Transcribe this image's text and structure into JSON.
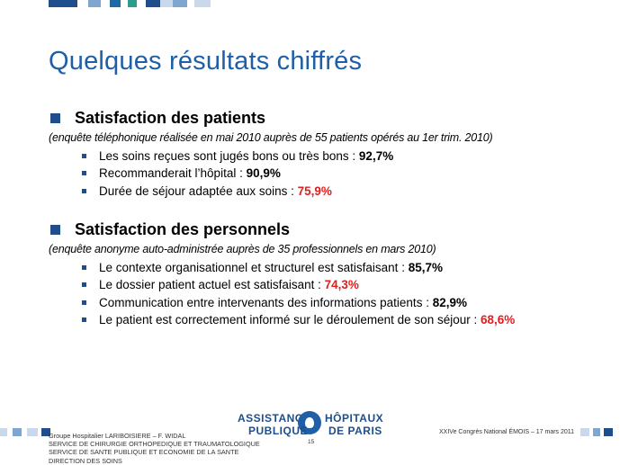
{
  "slide": {
    "title": "Quelques résultats chiffrés",
    "page_number": "15"
  },
  "colors": {
    "title": "#1f5fa8",
    "bullet": "#1f4e8c",
    "highlight": "#e02020"
  },
  "sections": [
    {
      "title": "Satisfaction des patients",
      "note": "(enquête téléphonique réalisée en mai 2010 auprès de 55 patients opérés au 1er trim. 2010)",
      "items": [
        {
          "text": "Les soins reçues sont jugés bons ou très bons : ",
          "value": "92,7%",
          "highlight": false
        },
        {
          "text": "Recommanderait l’hôpital : ",
          "value": "90,9%",
          "highlight": false
        },
        {
          "text": "Durée de séjour adaptée aux soins : ",
          "value": "75,9%",
          "highlight": true
        }
      ]
    },
    {
      "title": "Satisfaction des personnels",
      "note": "(enquête anonyme auto-administrée auprès de 35 professionnels en mars 2010)",
      "items": [
        {
          "text": "Le contexte organisationnel et structurel est satisfaisant : ",
          "value": "85,7%",
          "highlight": false
        },
        {
          "text": "Le dossier patient actuel est satisfaisant : ",
          "value": "74,3%",
          "highlight": true
        },
        {
          "text": "Communication entre intervenants des informations patients : ",
          "value": "82,9%",
          "highlight": false
        },
        {
          "text": "Le patient est correctement informé sur le déroulement de son séjour : ",
          "value": "68,6%",
          "highlight": true
        }
      ]
    }
  ],
  "footer": {
    "left_lines": [
      "Groupe Hospitalier LARIBOISIERE – F. WIDAL",
      "SERVICE DE CHIRURGIE ORTHOPEDIQUE ET TRAUMATOLOGIQUE",
      "SERVICE DE SANTE PUBLIQUE ET ECONOMIE DE LA SANTE",
      "DIRECTION DES SOINS"
    ],
    "right": "XXIVe Congrès National ÉMOIS – 17 mars 2011",
    "logo_line1_left": "ASSISTANCE",
    "logo_line1_right": "HÔPITAUX",
    "logo_line2_left": "PUBLIQUE",
    "logo_line2_right": "DE PARIS"
  }
}
